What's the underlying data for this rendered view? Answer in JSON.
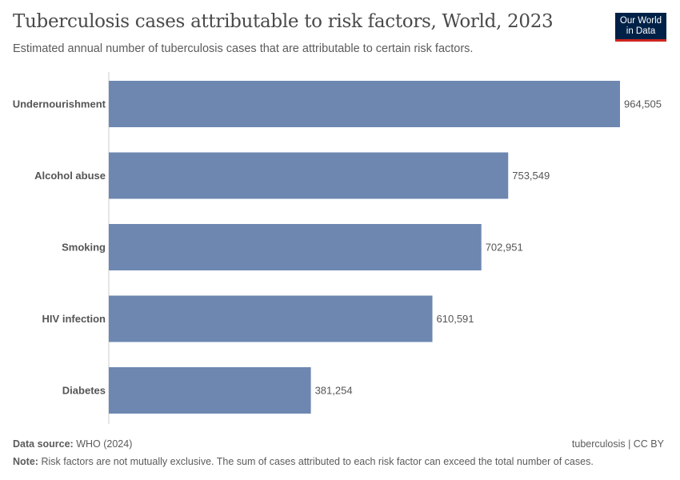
{
  "header": {
    "title": "Tuberculosis cases attributable to risk factors, World, 2023",
    "subtitle": "Estimated annual number of tuberculosis cases that are attributable to certain risk factors.",
    "logo": "Our World in Data"
  },
  "footer": {
    "source_label": "Data source:",
    "source": "WHO (2024)",
    "license": "tuberculosis | CC BY",
    "note_label": "Note:",
    "note": "Risk factors are not mutually exclusive. The sum of cases attributed to each risk factor can exceed the total number of cases."
  },
  "chart_data": {
    "type": "bar",
    "orientation": "horizontal",
    "title": "Tuberculosis cases attributable to risk factors, World, 2023",
    "categories": [
      "Undernourishment",
      "Alcohol abuse",
      "Smoking",
      "HIV infection",
      "Diabetes"
    ],
    "values": [
      964505,
      753549,
      702951,
      610591,
      381254
    ],
    "data_labels": [
      "964,505",
      "753,549",
      "702,951",
      "610,591",
      "381,254"
    ],
    "bar_color": "#6d87b1",
    "grid": false,
    "xlim": [
      0,
      964505
    ]
  }
}
